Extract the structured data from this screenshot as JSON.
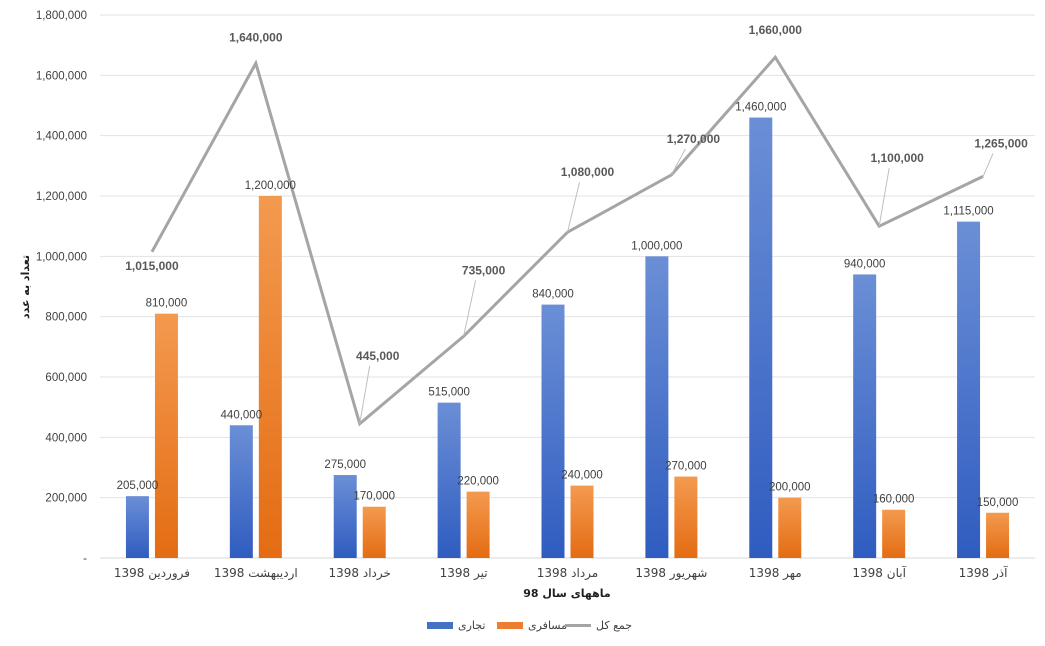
{
  "chart_data": {
    "type": "bar",
    "categories": [
      "فروردین 1398",
      "اردیبهشت 1398",
      "خرداد 1398",
      "تیر 1398",
      "مرداد 1398",
      "شهریور 1398",
      "مهر 1398",
      "آبان 1398",
      "آذر 1398"
    ],
    "series": [
      {
        "name": "تجاری",
        "type": "bar",
        "color": "#4472c4",
        "values": [
          205000,
          440000,
          275000,
          515000,
          840000,
          1000000,
          1460000,
          940000,
          1115000
        ]
      },
      {
        "name": "مسافری",
        "type": "bar",
        "color": "#ed7d31",
        "values": [
          810000,
          1200000,
          170000,
          220000,
          240000,
          270000,
          200000,
          160000,
          150000
        ]
      },
      {
        "name": "جمع کل",
        "type": "line",
        "color": "#a5a5a5",
        "values": [
          1015000,
          1640000,
          445000,
          735000,
          1080000,
          1270000,
          1660000,
          1100000,
          1265000
        ]
      }
    ],
    "data_labels": {
      "bars": [
        [
          "205,000",
          "440,000",
          "275,000",
          "515,000",
          "840,000",
          "1,000,000",
          "1,460,000",
          "940,000",
          "1,115,000"
        ],
        [
          "810,000",
          "1,200,000",
          "170,000",
          "220,000",
          "240,000",
          "270,000",
          "200,000",
          "160,000",
          "150,000"
        ]
      ],
      "line": [
        "1,015,000",
        "1,640,000",
        "445,000",
        "735,000",
        "1,080,000",
        "1,270,000",
        "1,660,000",
        "1,100,000",
        "1,265,000"
      ]
    },
    "y_ticks": [
      "-",
      "200,000",
      "400,000",
      "600,000",
      "800,000",
      "1,000,000",
      "1,200,000",
      "1,400,000",
      "1,600,000",
      "1,800,000"
    ],
    "ylim": [
      0,
      1800000
    ],
    "xlabel": "ماههای سال 98",
    "ylabel": "تعداد به عدد",
    "grid": true,
    "legend_position": "bottom"
  }
}
